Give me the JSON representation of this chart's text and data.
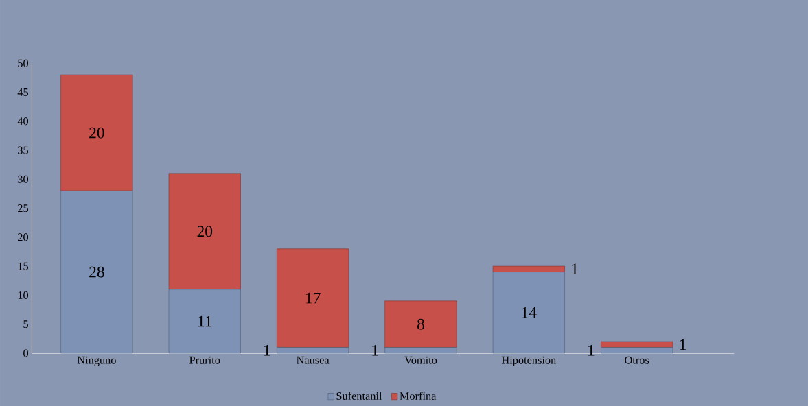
{
  "chart_data": {
    "type": "bar",
    "stacked": true,
    "categories": [
      "Ninguno",
      "Prurito",
      "Nausea",
      "Vomito",
      "Hipotension",
      "Otros"
    ],
    "series": [
      {
        "name": "Sufentanil",
        "color": "#7d92b5",
        "values": [
          28,
          11,
          1,
          1,
          14,
          1
        ]
      },
      {
        "name": "Morfina",
        "color": "#c8504a",
        "values": [
          20,
          20,
          17,
          8,
          1,
          1
        ]
      }
    ],
    "ylim": [
      0,
      50
    ],
    "yticks": [
      0,
      5,
      10,
      15,
      20,
      25,
      30,
      35,
      40,
      45,
      50
    ],
    "data_labels": true,
    "legend": "bottom",
    "grid": false
  }
}
